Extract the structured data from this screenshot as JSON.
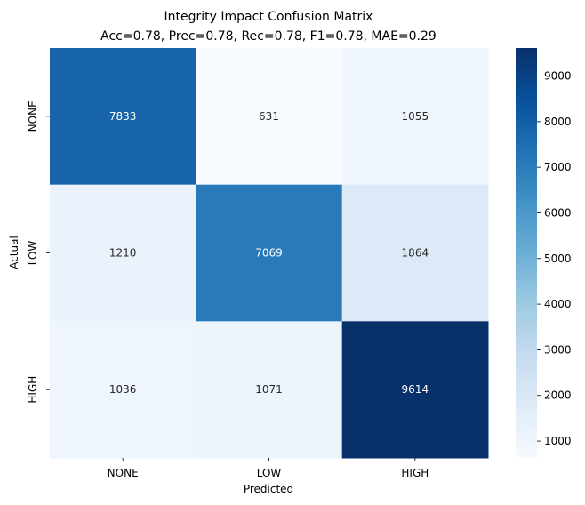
{
  "chart_data": {
    "type": "heatmap",
    "title": "Integrity Impact Confusion Matrix",
    "subtitle": "Acc=0.78, Prec=0.78, Rec=0.78, F1=0.78, MAE=0.29",
    "xlabel": "Predicted",
    "ylabel": "Actual",
    "x_categories": [
      "NONE",
      "LOW",
      "HIGH"
    ],
    "y_categories": [
      "NONE",
      "LOW",
      "HIGH"
    ],
    "values": [
      [
        7833,
        631,
        1055
      ],
      [
        1210,
        7069,
        1864
      ],
      [
        1036,
        1071,
        9614
      ]
    ],
    "colorbar": {
      "min": 631,
      "max": 9614,
      "ticks": [
        1000,
        2000,
        3000,
        4000,
        5000,
        6000,
        7000,
        8000,
        9000
      ],
      "colormap": "Blues"
    }
  }
}
